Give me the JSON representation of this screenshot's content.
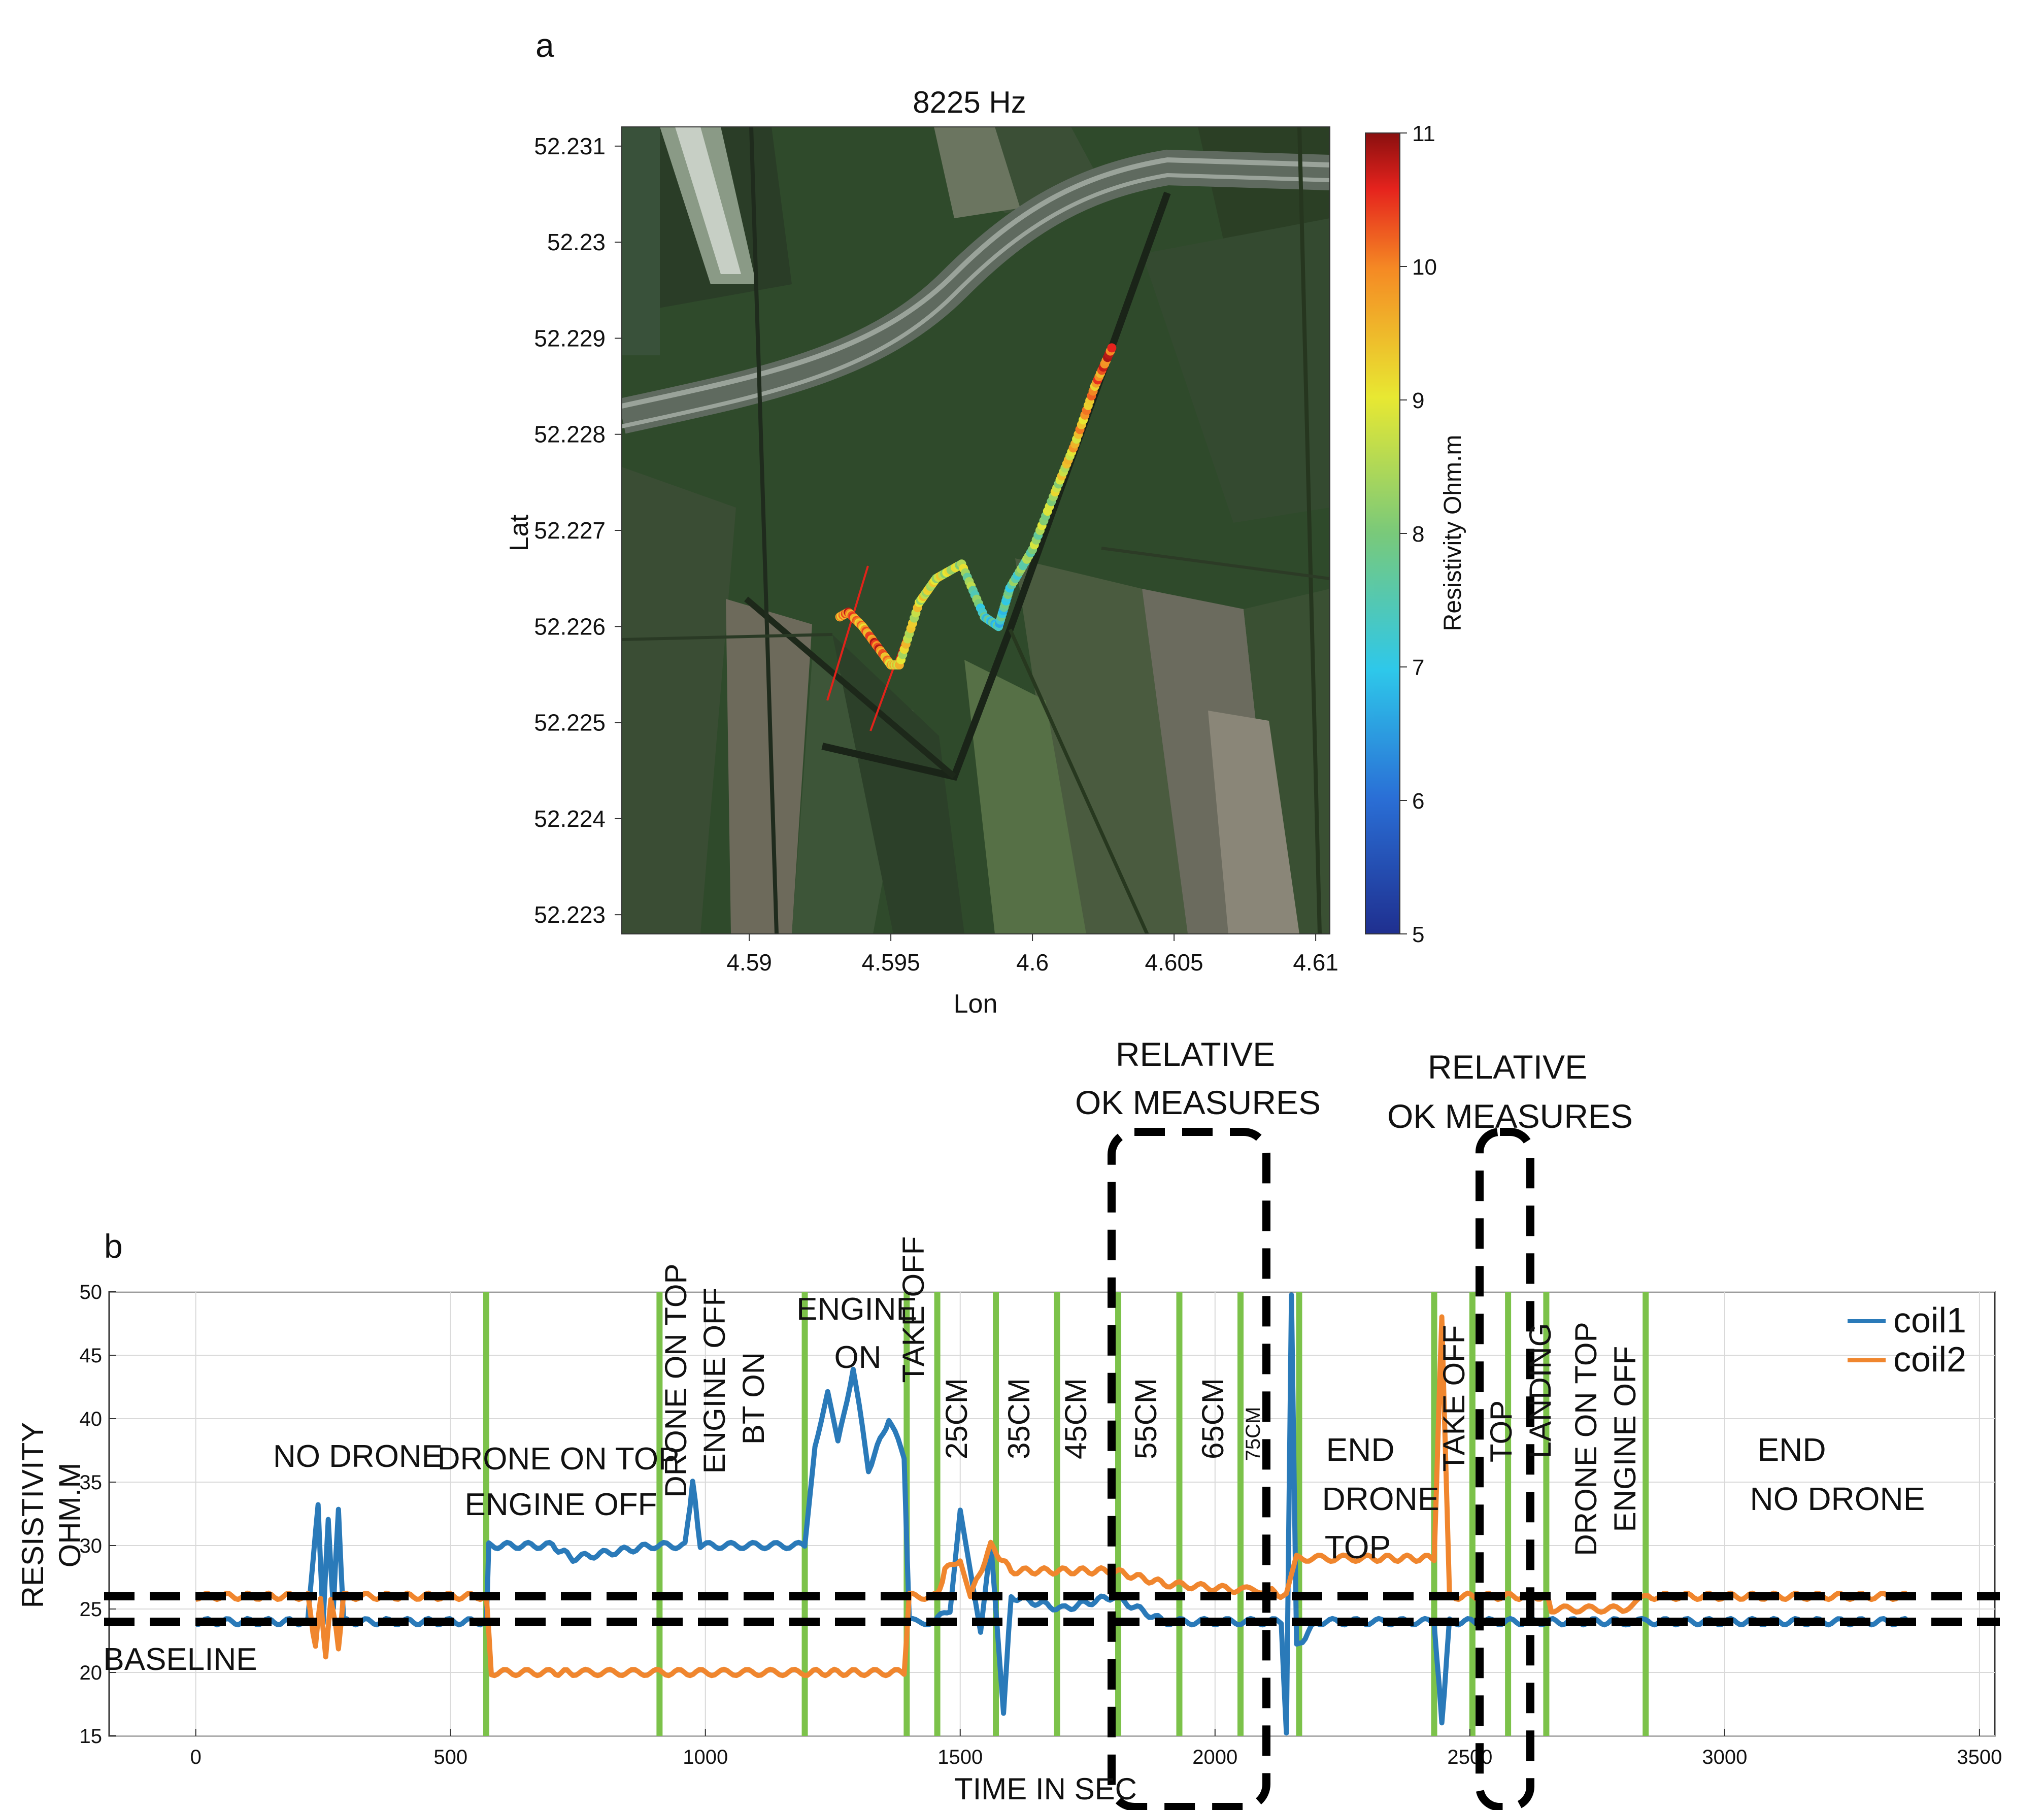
{
  "panel_labels": {
    "a": "a",
    "b": "b"
  },
  "colors": {
    "coil1": "#2a7ab9",
    "coil2": "#f0862e",
    "event_line": "#7cc24a",
    "grid": "#d9d9d9"
  },
  "chart_data": [
    {
      "type": "scatter",
      "title": "8225 Hz",
      "xlabel": "Lon",
      "ylabel": "Lat",
      "xlim": [
        4.5855,
        4.6105
      ],
      "ylim": [
        52.2228,
        52.2312
      ],
      "xticks": [
        "4.59",
        "4.595",
        "4.6",
        "4.605",
        "4.61"
      ],
      "yticks": [
        "52.223",
        "52.224",
        "52.225",
        "52.226",
        "52.227",
        "52.228",
        "52.229",
        "52.23",
        "52.231"
      ],
      "colorbar": {
        "label": "Resistivity Ohm.m",
        "min": 5,
        "max": 11,
        "ticks": [
          "5",
          "6",
          "7",
          "8",
          "9",
          "10",
          "11"
        ]
      },
      "track": [
        {
          "lon": 4.5932,
          "lat": 52.2261,
          "value": 9.5
        },
        {
          "lon": 4.5935,
          "lat": 52.22615,
          "value": 10.2
        },
        {
          "lon": 4.594,
          "lat": 52.226,
          "value": 9.6
        },
        {
          "lon": 4.5945,
          "lat": 52.2258,
          "value": 10.4
        },
        {
          "lon": 4.595,
          "lat": 52.2256,
          "value": 9.4
        },
        {
          "lon": 4.5953,
          "lat": 52.2256,
          "value": 9.0
        },
        {
          "lon": 4.596,
          "lat": 52.22625,
          "value": 8.9
        },
        {
          "lon": 4.5966,
          "lat": 52.2265,
          "value": 8.8
        },
        {
          "lon": 4.5975,
          "lat": 52.22665,
          "value": 8.6
        },
        {
          "lon": 4.5983,
          "lat": 52.2261,
          "value": 7.4
        },
        {
          "lon": 4.5988,
          "lat": 52.226,
          "value": 7.2
        },
        {
          "lon": 4.5992,
          "lat": 52.2264,
          "value": 7.6
        },
        {
          "lon": 4.6,
          "lat": 52.2268,
          "value": 8.2
        },
        {
          "lon": 4.6008,
          "lat": 52.2274,
          "value": 8.6
        },
        {
          "lon": 4.6015,
          "lat": 52.2279,
          "value": 9.4
        },
        {
          "lon": 4.6022,
          "lat": 52.2285,
          "value": 9.8
        },
        {
          "lon": 4.6028,
          "lat": 52.2289,
          "value": 10.6
        }
      ]
    },
    {
      "type": "line",
      "xlabel": "TIME IN SEC",
      "ylabel_lines": [
        "RESISTIVITY",
        "OHM.M"
      ],
      "xlim": [
        -170,
        3530
      ],
      "ylim": [
        15,
        50
      ],
      "xticks": [
        0,
        500,
        1000,
        1500,
        2000,
        2500,
        3000,
        3500
      ],
      "xtick_labels": [
        "0",
        "500",
        "1000",
        "1500",
        "2000",
        "2500",
        "3000",
        "3500"
      ],
      "yticks": [
        15,
        20,
        25,
        30,
        35,
        40,
        45,
        50
      ],
      "ytick_labels": [
        "15",
        "20",
        "25",
        "30",
        "35",
        "40",
        "45",
        "50"
      ],
      "legend": {
        "position": "top-right",
        "entries": [
          "coil1",
          "coil2"
        ]
      },
      "event_lines": [
        570,
        910,
        1195,
        1395,
        1455,
        1570,
        1690,
        1810,
        1930,
        2050,
        2165,
        2430,
        2505,
        2575,
        2650,
        2845
      ],
      "baseline_band": [
        24,
        26
      ],
      "series": [
        {
          "name": "coil1",
          "points": [
            [
              0,
              24
            ],
            [
              220,
              24
            ],
            [
              230,
              29
            ],
            [
              240,
              33
            ],
            [
              250,
              24
            ],
            [
              260,
              32
            ],
            [
              270,
              25
            ],
            [
              280,
              33
            ],
            [
              290,
              24
            ],
            [
              570,
              24
            ],
            [
              575,
              30
            ],
            [
              700,
              30
            ],
            [
              740,
              29
            ],
            [
              900,
              30
            ],
            [
              960,
              30
            ],
            [
              975,
              35
            ],
            [
              990,
              30
            ],
            [
              1195,
              30
            ],
            [
              1215,
              38
            ],
            [
              1240,
              42
            ],
            [
              1260,
              38
            ],
            [
              1290,
              44
            ],
            [
              1320,
              36
            ],
            [
              1360,
              40
            ],
            [
              1390,
              37
            ],
            [
              1400,
              24
            ],
            [
              1450,
              24
            ],
            [
              1480,
              25
            ],
            [
              1500,
              33
            ],
            [
              1520,
              28
            ],
            [
              1540,
              23
            ],
            [
              1560,
              30
            ],
            [
              1585,
              17
            ],
            [
              1600,
              26
            ],
            [
              1700,
              25
            ],
            [
              1800,
              26
            ],
            [
              1900,
              24
            ],
            [
              2100,
              24
            ],
            [
              2130,
              24
            ],
            [
              2140,
              15
            ],
            [
              2150,
              50
            ],
            [
              2160,
              22
            ],
            [
              2200,
              24
            ],
            [
              2430,
              24
            ],
            [
              2445,
              16
            ],
            [
              2460,
              24
            ],
            [
              2800,
              24
            ],
            [
              2850,
              24
            ],
            [
              3360,
              24
            ]
          ]
        },
        {
          "name": "coil2",
          "points": [
            [
              0,
              26
            ],
            [
              220,
              26
            ],
            [
              235,
              22
            ],
            [
              245,
              26
            ],
            [
              255,
              21
            ],
            [
              265,
              26
            ],
            [
              280,
              22
            ],
            [
              290,
              26
            ],
            [
              570,
              26
            ],
            [
              580,
              20
            ],
            [
              700,
              20
            ],
            [
              740,
              20
            ],
            [
              910,
              20
            ],
            [
              1000,
              20
            ],
            [
              1200,
              20
            ],
            [
              1300,
              20
            ],
            [
              1390,
              20
            ],
            [
              1400,
              26
            ],
            [
              1455,
              26
            ],
            [
              1470,
              28
            ],
            [
              1500,
              29
            ],
            [
              1520,
              26
            ],
            [
              1560,
              30
            ],
            [
              1600,
              28
            ],
            [
              1700,
              28
            ],
            [
              1800,
              28
            ],
            [
              1900,
              27
            ],
            [
              2050,
              26.5
            ],
            [
              2100,
              26.5
            ],
            [
              2140,
              26
            ],
            [
              2160,
              29
            ],
            [
              2300,
              29
            ],
            [
              2430,
              29
            ],
            [
              2445,
              48
            ],
            [
              2460,
              26
            ],
            [
              2650,
              26
            ],
            [
              2660,
              25
            ],
            [
              2800,
              25
            ],
            [
              2850,
              26
            ],
            [
              3360,
              26
            ]
          ]
        }
      ],
      "text_annotations": [
        {
          "text": "NO DRONE"
        },
        {
          "text": "DRONE ON TOP"
        },
        {
          "text": "ENGINE OFF"
        },
        {
          "text": "DRONE ON TOP"
        },
        {
          "text": "ENGINE OFF"
        },
        {
          "text": "BT ON"
        },
        {
          "text": "ENGINE"
        },
        {
          "text": "ON"
        },
        {
          "text": "TAKE OFF"
        },
        {
          "text": "25CM"
        },
        {
          "text": "35CM"
        },
        {
          "text": "45CM"
        },
        {
          "text": "55CM"
        },
        {
          "text": "65CM"
        },
        {
          "text": "75CM"
        },
        {
          "text": "END"
        },
        {
          "text": "DRONE"
        },
        {
          "text": "TOP"
        },
        {
          "text": "TAKE OFF"
        },
        {
          "text": "TOP"
        },
        {
          "text": "LANDING"
        },
        {
          "text": "DRONE ON TOP"
        },
        {
          "text": "ENGINE OFF"
        },
        {
          "text": "END"
        },
        {
          "text": "NO DRONE"
        },
        {
          "text": "BASELINE"
        },
        {
          "text": "RELATIVE"
        },
        {
          "text": "OK MEASURES"
        },
        {
          "text": "RELATIVE"
        },
        {
          "text": "OK MEASURES"
        }
      ]
    }
  ]
}
